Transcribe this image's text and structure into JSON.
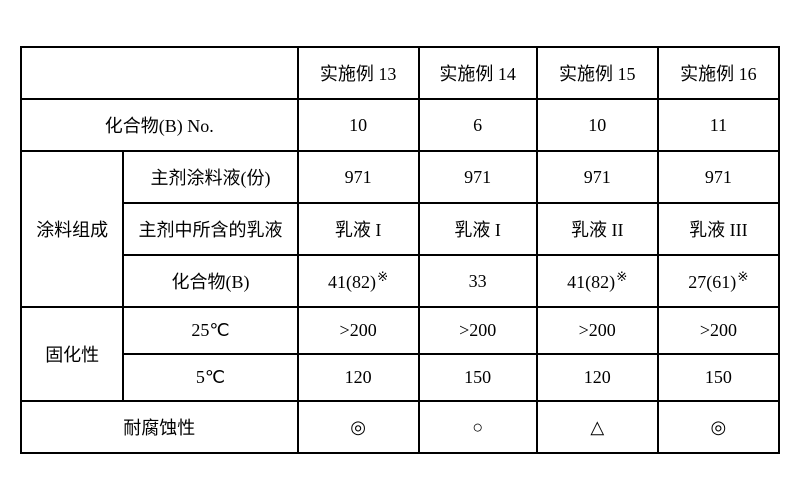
{
  "headers": {
    "col1": "实施例 13",
    "col2": "实施例 14",
    "col3": "实施例 15",
    "col4": "实施例 16"
  },
  "rows": {
    "compound_b_no": {
      "label": "化合物(B) No.",
      "c1": "10",
      "c2": "6",
      "c3": "10",
      "c4": "11"
    },
    "composition_group": "涂料组成",
    "main_agent": {
      "label": "主剂涂料液(份)",
      "c1": "971",
      "c2": "971",
      "c3": "971",
      "c4": "971"
    },
    "emulsion": {
      "label": "主剂中所含的乳液",
      "c1": "乳液 I",
      "c2": "乳液 I",
      "c3": "乳液 II",
      "c4": "乳液 III"
    },
    "compound_b": {
      "label": "化合物(B)",
      "c1_base": "41(82)",
      "c2": "33",
      "c3_base": "41(82)",
      "c4_base": "27(61)",
      "asterisk": "※"
    },
    "curing_group": "固化性",
    "curing_25": {
      "label": "25℃",
      "c1": ">200",
      "c2": ">200",
      "c3": ">200",
      "c4": ">200"
    },
    "curing_5": {
      "label": "5℃",
      "c1": "120",
      "c2": "150",
      "c3": "120",
      "c4": "150"
    },
    "corrosion": {
      "label": "耐腐蚀性",
      "c1": "◎",
      "c2": "○",
      "c3": "△",
      "c4": "◎"
    }
  },
  "style": {
    "border_color": "#000000",
    "background": "#ffffff",
    "font_size": 18
  }
}
